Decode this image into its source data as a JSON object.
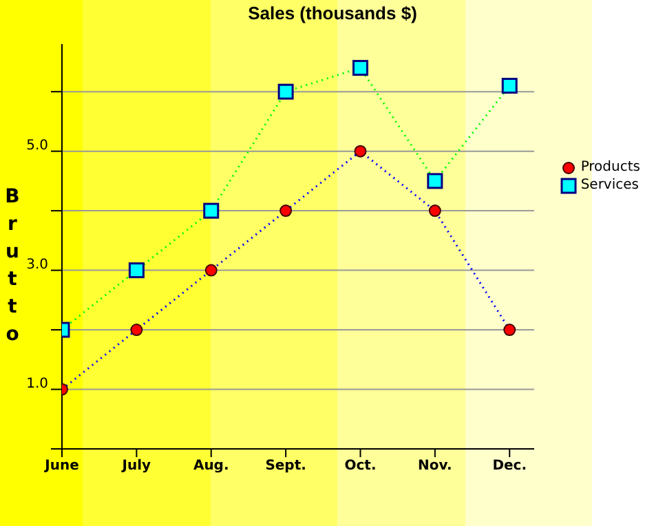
{
  "chart_data": {
    "type": "line",
    "title": "Sales (thousands $)",
    "ylabel": "Brutto",
    "categories": [
      "June",
      "July",
      "Aug.",
      "Sept.",
      "Oct.",
      "Nov.",
      "Dec."
    ],
    "series": [
      {
        "name": "Products",
        "color": "#0000ff",
        "colors": [
          "#ff0000",
          "#ff0000",
          "#ff0000",
          "#ff0000",
          "#ff0000",
          "#ff0000",
          "#ff0000"
        ],
        "marker": "circle",
        "values": [
          1,
          2,
          3,
          4,
          5,
          4,
          2
        ]
      },
      {
        "name": "Services",
        "color": "#00ff00",
        "colors": [
          "#00ffff",
          "#00ffff",
          "#00ffff",
          "#00ffff",
          "#00ffff",
          "#00ffff",
          "#00ffff"
        ],
        "marker": "square",
        "values": [
          2,
          3,
          4,
          6,
          6.4,
          4.5,
          6.1
        ]
      }
    ],
    "ylim": [
      0,
      6.8
    ],
    "yticks": [
      {
        "value": 0,
        "label": null
      },
      {
        "value": 1,
        "label": "1.0"
      },
      {
        "value": 2,
        "label": null
      },
      {
        "value": 3,
        "label": "3.0"
      },
      {
        "value": 4,
        "label": null
      },
      {
        "value": 5,
        "label": "5.0"
      },
      {
        "value": 6,
        "label": null
      }
    ],
    "grid": "y",
    "legend": "right",
    "line_style": "dotted"
  }
}
